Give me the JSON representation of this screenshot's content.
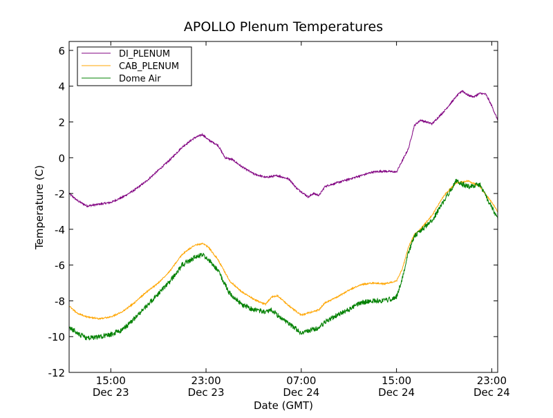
{
  "chart_data": {
    "type": "line",
    "title": "APOLLO Plenum Temperatures",
    "xlabel": "Date (GMT)",
    "ylabel": "Temperature (C)",
    "x_unit": "hours since Dec 23 00:00 GMT",
    "xlim": [
      11.5,
      47.5
    ],
    "ylim": [
      -12,
      6.5
    ],
    "yticks": [
      -12,
      -10,
      -8,
      -6,
      -4,
      -2,
      0,
      2,
      4,
      6
    ],
    "ytick_labels": [
      "-12",
      "-10",
      "-8",
      "-6",
      "-4",
      "-2",
      "0",
      "2",
      "4",
      "6"
    ],
    "xticks": [
      {
        "x": 15,
        "time": "15:00",
        "date": "Dec 23"
      },
      {
        "x": 23,
        "time": "23:00",
        "date": "Dec 23"
      },
      {
        "x": 31,
        "time": "07:00",
        "date": "Dec 24"
      },
      {
        "x": 39,
        "time": "15:00",
        "date": "Dec 24"
      },
      {
        "x": 47,
        "time": "23:00",
        "date": "Dec 24"
      }
    ],
    "legend_position": "top-left",
    "series": [
      {
        "name": "DI_PLENUM",
        "color": "#800080",
        "x": [
          11.5,
          12.2,
          13.0,
          14.0,
          15.0,
          16.0,
          17.0,
          18.0,
          19.0,
          20.0,
          21.0,
          22.0,
          22.7,
          23.2,
          24.0,
          24.6,
          25.2,
          26.0,
          27.0,
          28.0,
          29.0,
          30.0,
          30.6,
          31.0,
          31.6,
          32.0,
          32.5,
          33.0,
          34.0,
          35.0,
          36.0,
          37.0,
          38.0,
          39.0,
          40.0,
          40.5,
          41.0,
          42.0,
          43.0,
          44.0,
          44.5,
          45.0,
          45.5,
          46.0,
          46.5,
          47.0,
          47.5
        ],
        "y": [
          -2.0,
          -2.4,
          -2.7,
          -2.6,
          -2.5,
          -2.2,
          -1.8,
          -1.3,
          -0.7,
          -0.1,
          0.6,
          1.1,
          1.3,
          1.0,
          0.7,
          0.0,
          -0.1,
          -0.5,
          -0.9,
          -1.1,
          -1.0,
          -1.2,
          -1.7,
          -1.9,
          -2.2,
          -2.0,
          -2.1,
          -1.6,
          -1.4,
          -1.2,
          -1.0,
          -0.8,
          -0.75,
          -0.8,
          0.5,
          1.8,
          2.1,
          1.9,
          2.6,
          3.4,
          3.75,
          3.5,
          3.4,
          3.6,
          3.55,
          2.9,
          2.1
        ]
      },
      {
        "name": "CAB_PLENUM",
        "color": "#ffa500",
        "x": [
          11.5,
          12.2,
          13.0,
          14.0,
          15.0,
          16.0,
          17.0,
          18.0,
          19.0,
          20.0,
          21.0,
          22.0,
          22.7,
          23.2,
          24.0,
          25.0,
          26.0,
          27.0,
          28.0,
          28.5,
          29.0,
          30.0,
          31.0,
          32.0,
          32.5,
          33.0,
          34.0,
          35.0,
          36.0,
          37.0,
          38.0,
          39.0,
          39.5,
          40.0,
          40.5,
          41.0,
          42.0,
          43.0,
          44.0,
          45.0,
          46.0,
          47.0,
          47.5
        ],
        "y": [
          -8.3,
          -8.7,
          -8.9,
          -9.0,
          -8.9,
          -8.6,
          -8.1,
          -7.5,
          -7.0,
          -6.3,
          -5.4,
          -4.9,
          -4.8,
          -5.0,
          -5.7,
          -6.9,
          -7.5,
          -7.9,
          -8.2,
          -7.8,
          -7.7,
          -8.3,
          -8.8,
          -8.6,
          -8.5,
          -8.1,
          -7.8,
          -7.4,
          -7.1,
          -7.0,
          -7.05,
          -6.9,
          -6.2,
          -5.0,
          -4.3,
          -4.0,
          -3.2,
          -2.1,
          -1.4,
          -1.3,
          -1.6,
          -2.5,
          -3.0
        ]
      },
      {
        "name": "Dome Air",
        "color": "#008000",
        "x": [
          11.5,
          12.2,
          13.0,
          14.0,
          15.0,
          16.0,
          17.0,
          18.0,
          19.0,
          20.0,
          21.0,
          22.0,
          22.7,
          23.2,
          24.0,
          25.0,
          26.0,
          27.0,
          28.0,
          28.5,
          29.0,
          30.0,
          31.0,
          32.0,
          32.5,
          33.0,
          34.0,
          35.0,
          36.0,
          37.0,
          38.0,
          39.0,
          39.5,
          40.0,
          40.5,
          41.0,
          42.0,
          43.0,
          44.0,
          45.0,
          46.0,
          47.0,
          47.5
        ],
        "y": [
          -9.5,
          -9.8,
          -10.1,
          -10.0,
          -9.9,
          -9.6,
          -9.0,
          -8.3,
          -7.6,
          -6.9,
          -6.0,
          -5.6,
          -5.4,
          -5.7,
          -6.3,
          -7.6,
          -8.2,
          -8.5,
          -8.6,
          -8.5,
          -8.8,
          -9.3,
          -9.8,
          -9.6,
          -9.5,
          -9.2,
          -8.8,
          -8.5,
          -8.1,
          -8.0,
          -8.0,
          -7.8,
          -6.7,
          -5.3,
          -4.4,
          -4.1,
          -3.5,
          -2.4,
          -1.3,
          -1.6,
          -1.5,
          -2.8,
          -3.4
        ]
      }
    ]
  }
}
